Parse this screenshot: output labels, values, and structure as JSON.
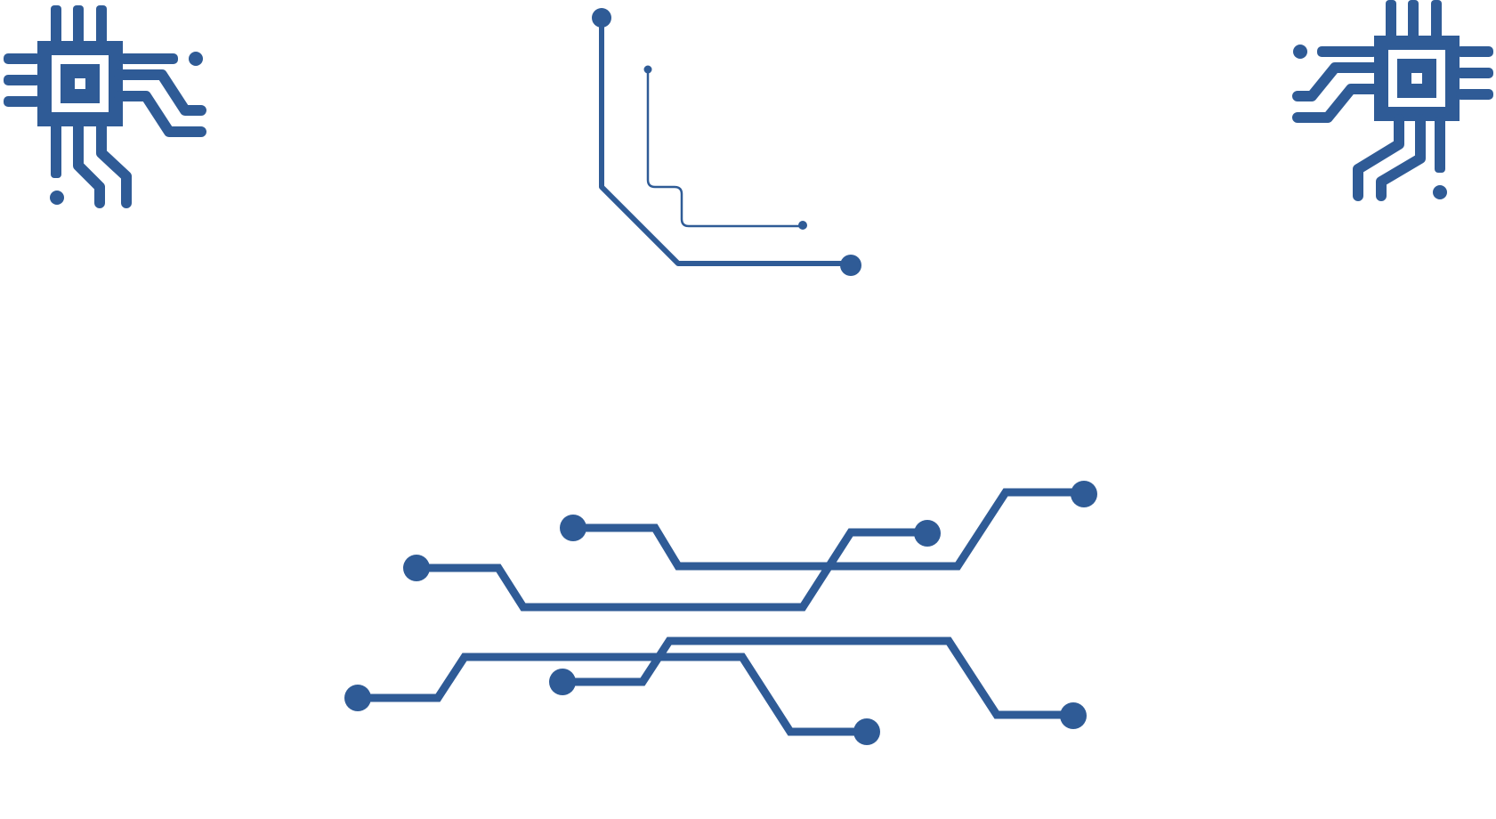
{
  "colors": {
    "background": "#ffffff",
    "trace": "#2f5b96"
  },
  "elements": {
    "chip_left": "chip-icon",
    "chip_right": "chip-icon",
    "corner_traces": "circuit-corner-traces",
    "trace_cluster": "circuit-trace-cluster"
  }
}
